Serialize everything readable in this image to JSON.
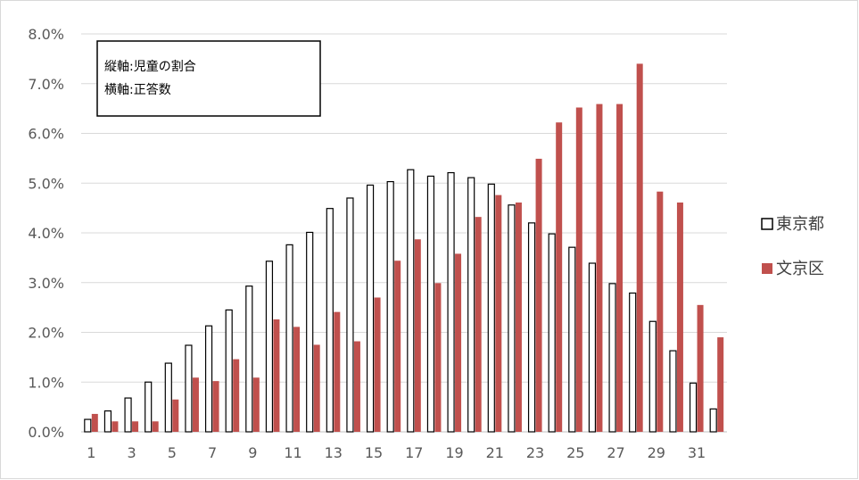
{
  "chart_data": {
    "type": "bar",
    "categories": [
      1,
      2,
      3,
      4,
      5,
      6,
      7,
      8,
      9,
      10,
      11,
      12,
      13,
      14,
      15,
      16,
      17,
      18,
      19,
      20,
      21,
      22,
      23,
      24,
      25,
      26,
      27,
      28,
      29,
      30,
      31,
      32
    ],
    "x_tick_labels": [
      "1",
      "3",
      "5",
      "7",
      "9",
      "11",
      "13",
      "15",
      "17",
      "19",
      "21",
      "23",
      "25",
      "27",
      "29",
      "31"
    ],
    "ylim": [
      0,
      8
    ],
    "y_tick_labels": [
      "0.0%",
      "1.0%",
      "2.0%",
      "3.0%",
      "4.0%",
      "5.0%",
      "6.0%",
      "7.0%",
      "8.0%"
    ],
    "y_unit": "%",
    "grid": true,
    "legend_position": "right",
    "annotation": [
      "縦軸:児童の割合",
      "横軸:正答数"
    ],
    "series": [
      {
        "name": "東京都",
        "color": "#ffffff",
        "stroke": "#000000",
        "values": [
          0.25,
          0.42,
          0.68,
          1.0,
          1.38,
          1.74,
          2.13,
          2.45,
          2.93,
          3.43,
          3.76,
          4.01,
          4.49,
          4.7,
          4.96,
          5.03,
          5.27,
          5.14,
          5.21,
          5.11,
          4.98,
          4.56,
          4.2,
          3.98,
          3.71,
          3.39,
          2.98,
          2.79,
          2.22,
          1.63,
          0.98,
          0.46
        ]
      },
      {
        "name": "文京区",
        "color": "#c0504d",
        "stroke": "none",
        "values": [
          0.36,
          0.21,
          0.21,
          0.21,
          0.65,
          1.09,
          1.02,
          1.46,
          1.09,
          2.26,
          2.11,
          1.75,
          2.41,
          1.82,
          2.7,
          3.44,
          3.87,
          2.99,
          3.58,
          4.32,
          4.76,
          4.61,
          5.49,
          6.22,
          6.52,
          6.59,
          6.59,
          7.4,
          4.83,
          4.61,
          2.55,
          1.9
        ]
      }
    ]
  }
}
